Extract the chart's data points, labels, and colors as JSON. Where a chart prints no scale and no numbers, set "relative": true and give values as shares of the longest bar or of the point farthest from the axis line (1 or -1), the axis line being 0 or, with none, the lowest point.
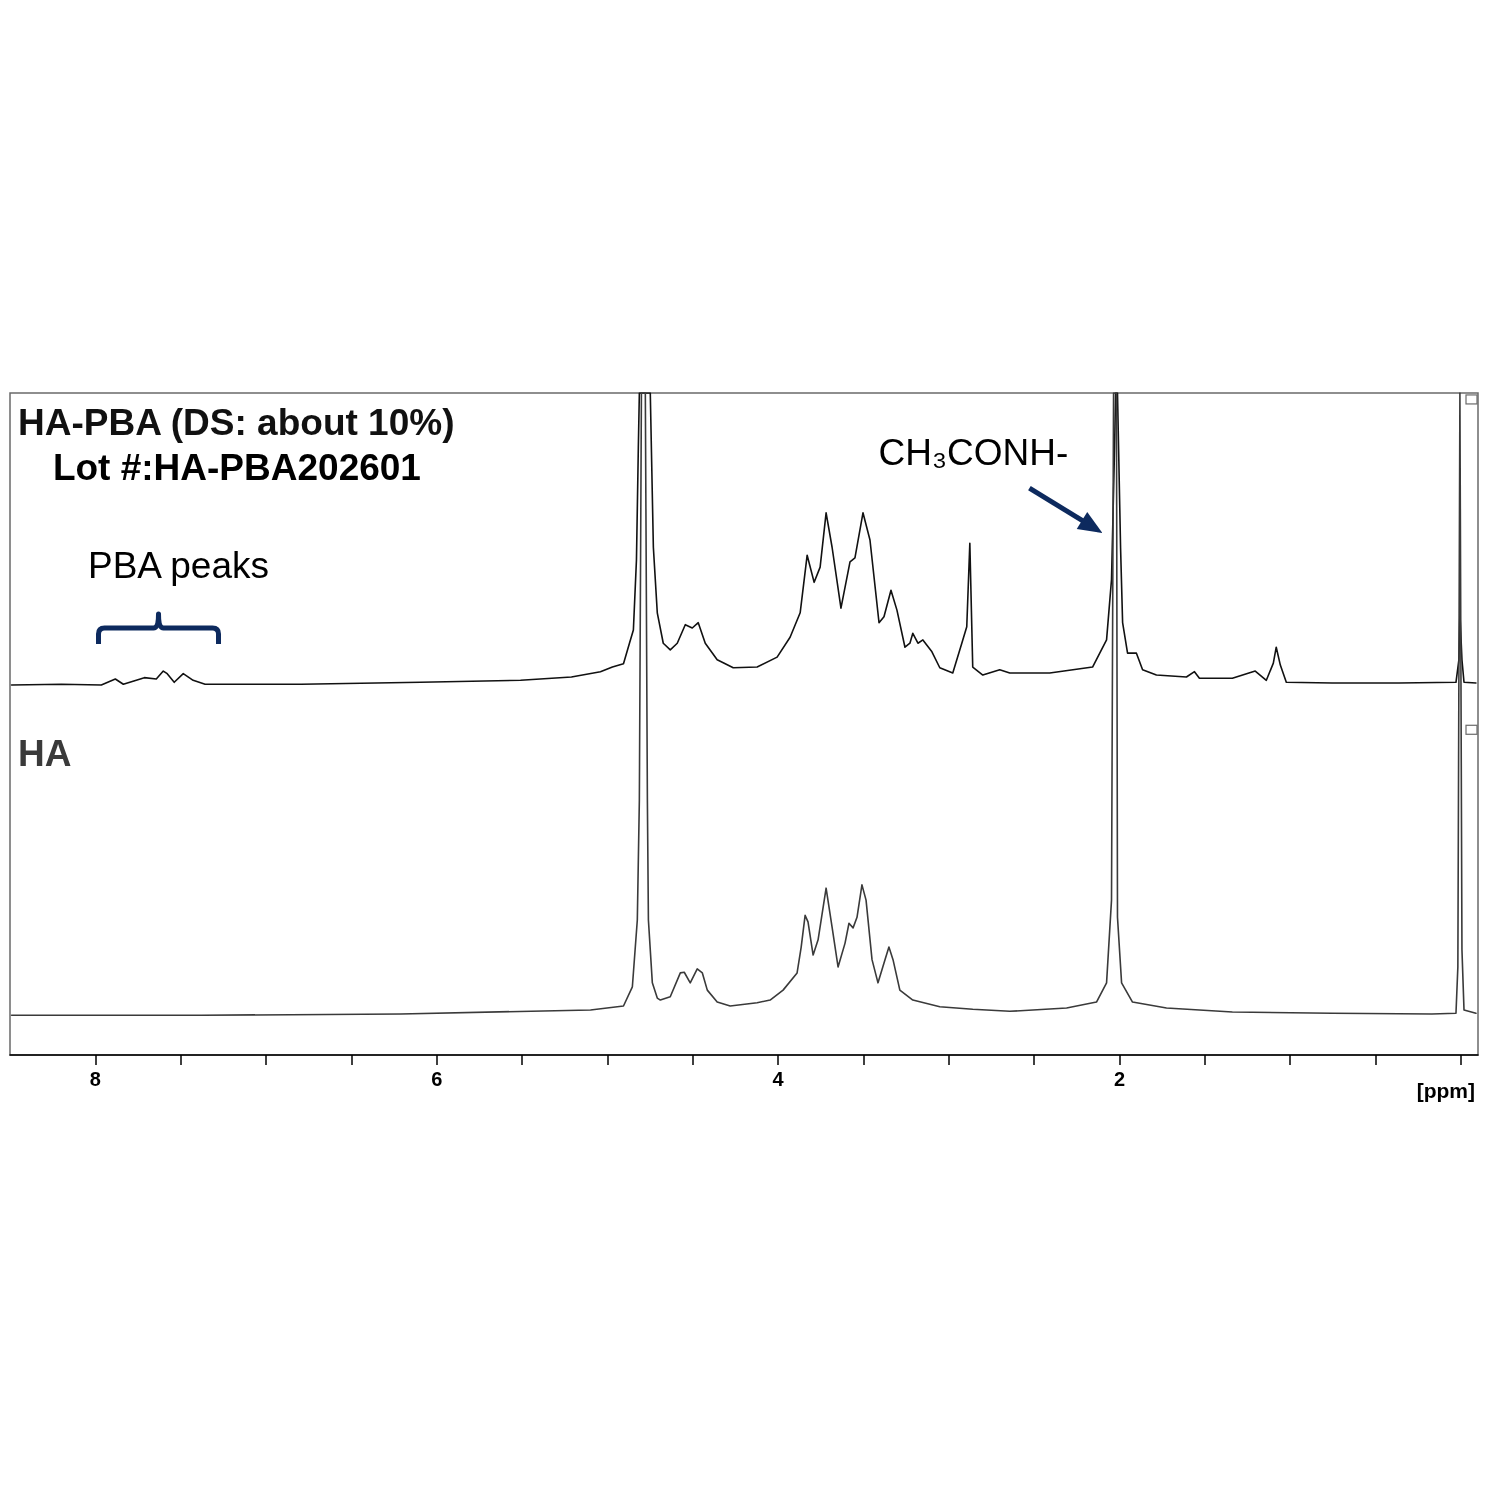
{
  "chart_data": {
    "type": "line",
    "relative": true,
    "xlabel": "[ppm]",
    "xlim": [
      8.5,
      -0.1
    ],
    "xticks": [
      8,
      {
        "value": 7.5,
        "label": null
      },
      {
        "value": 7,
        "label": null
      },
      {
        "value": 6.5,
        "label": null
      },
      6,
      {
        "value": 5.5,
        "label": null
      },
      {
        "value": 5,
        "label": null
      },
      {
        "value": 4.5,
        "label": null
      },
      4,
      {
        "value": 3.5,
        "label": null
      },
      {
        "value": 3,
        "label": null
      },
      {
        "value": 2.5,
        "label": null
      },
      2,
      {
        "value": 1.5,
        "label": null
      },
      {
        "value": 1,
        "label": null
      },
      {
        "value": 0.5,
        "label": null
      },
      {
        "value": 0,
        "label": null
      }
    ],
    "grid": false,
    "legend": false,
    "marker": "none",
    "line_style": "solid",
    "series": [
      {
        "name": "HA-PBA (DS: about 10%)",
        "color": "#111111",
        "x": [
          8.491,
          8.199,
          7.965,
          7.883,
          7.836,
          7.713,
          7.643,
          7.602,
          7.579,
          7.538,
          7.485,
          7.427,
          7.357,
          6.795,
          6.094,
          5.509,
          5.211,
          5.041,
          4.971,
          4.906,
          4.871,
          4.848,
          4.83,
          4.819,
          4.813,
          4.749,
          4.731,
          4.708,
          4.673,
          4.632,
          4.591,
          4.544,
          4.503,
          4.468,
          4.427,
          4.357,
          4.263,
          4.123,
          4.006,
          3.93,
          3.871,
          3.83,
          3.789,
          3.754,
          3.719,
          3.684,
          3.632,
          3.579,
          3.55,
          3.503,
          3.462,
          3.409,
          3.38,
          3.339,
          3.304,
          3.257,
          3.228,
          3.211,
          3.181,
          3.152,
          3.099,
          3.053,
          2.977,
          2.924,
          2.895,
          2.877,
          2.86,
          2.801,
          2.702,
          2.643,
          2.409,
          2.158,
          2.076,
          2.047,
          2.029,
          2.023,
          2.012,
          1.994,
          1.982,
          1.953,
          1.901,
          1.865,
          1.784,
          1.608,
          1.561,
          1.532,
          1.339,
          1.205,
          1.14,
          1.099,
          1.082,
          1.058,
          1.023,
          0.754,
          0.363,
          0.029,
          0.012,
          0.006,
          -0.006,
          -0.018,
          -0.088
        ],
        "values": [
          0.559,
          0.56,
          0.559,
          0.568,
          0.56,
          0.57,
          0.568,
          0.58,
          0.576,
          0.563,
          0.576,
          0.566,
          0.56,
          0.56,
          0.563,
          0.566,
          0.571,
          0.579,
          0.586,
          0.591,
          0.622,
          0.642,
          0.748,
          0.918,
          1,
          1,
          0.767,
          0.668,
          0.622,
          0.612,
          0.622,
          0.65,
          0.645,
          0.653,
          0.622,
          0.597,
          0.585,
          0.586,
          0.601,
          0.631,
          0.668,
          0.755,
          0.714,
          0.737,
          0.819,
          0.767,
          0.675,
          0.745,
          0.751,
          0.819,
          0.778,
          0.653,
          0.662,
          0.702,
          0.672,
          0.616,
          0.622,
          0.637,
          0.622,
          0.627,
          0.609,
          0.585,
          0.577,
          0.622,
          0.647,
          0.773,
          0.586,
          0.574,
          0.582,
          0.577,
          0.577,
          0.586,
          0.627,
          0.718,
          0.918,
          1,
          1,
          0.767,
          0.653,
          0.607,
          0.607,
          0.582,
          0.574,
          0.571,
          0.579,
          0.569,
          0.569,
          0.58,
          0.566,
          0.592,
          0.616,
          0.589,
          0.563,
          0.562,
          0.562,
          0.563,
          0.597,
          0.668,
          0.597,
          0.563,
          0.562
        ]
      },
      {
        "name": "HA",
        "color": "#3a3a3a",
        "x": [
          8.491,
          7.38,
          6.211,
          5.099,
          4.906,
          4.854,
          4.825,
          4.813,
          4.801,
          4.778,
          4.766,
          4.76,
          4.737,
          4.708,
          4.69,
          4.632,
          4.573,
          4.55,
          4.515,
          4.474,
          4.444,
          4.415,
          4.357,
          4.281,
          4.123,
          4.047,
          3.971,
          3.889,
          3.865,
          3.842,
          3.825,
          3.795,
          3.766,
          3.719,
          3.684,
          3.649,
          3.608,
          3.585,
          3.561,
          3.538,
          3.509,
          3.485,
          3.45,
          3.415,
          3.374,
          3.351,
          3.327,
          3.287,
          3.211,
          3.053,
          2.86,
          2.643,
          2.31,
          2.135,
          2.076,
          2.047,
          2.035,
          2.018,
          2.012,
          1.988,
          1.924,
          1.725,
          1.339,
          0.754,
          0.17,
          0.029,
          0.018,
          0.006,
          -0.006,
          -0.018,
          -0.088
        ],
        "values": [
          0.06,
          0.06,
          0.062,
          0.068,
          0.074,
          0.103,
          0.204,
          0.385,
          1,
          1,
          0.385,
          0.204,
          0.109,
          0.086,
          0.083,
          0.088,
          0.124,
          0.125,
          0.109,
          0.13,
          0.124,
          0.098,
          0.08,
          0.074,
          0.079,
          0.083,
          0.098,
          0.124,
          0.163,
          0.211,
          0.201,
          0.151,
          0.174,
          0.252,
          0.193,
          0.133,
          0.169,
          0.199,
          0.192,
          0.208,
          0.257,
          0.234,
          0.144,
          0.109,
          0.144,
          0.163,
          0.144,
          0.098,
          0.083,
          0.073,
          0.069,
          0.066,
          0.071,
          0.08,
          0.109,
          0.234,
          1,
          1,
          0.208,
          0.109,
          0.08,
          0.071,
          0.065,
          0.063,
          0.062,
          0.063,
          0.133,
          1,
          0.159,
          0.068,
          0.063
        ]
      }
    ],
    "annotations": [
      {
        "text": "CH₃CONH-",
        "x": 2.03,
        "y": 0.79
      },
      {
        "text": "PBA peaks",
        "x": 7.63,
        "y": 0.58
      },
      "Lot #:HA-PBA202601"
    ]
  }
}
